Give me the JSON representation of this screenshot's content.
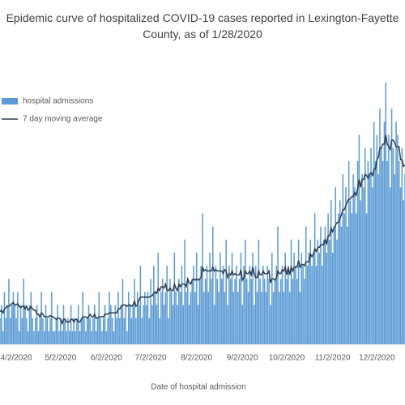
{
  "chart_data": {
    "type": "bar_line",
    "title": "Epidemic curve of hospitalized COVID-19 cases reported in Lexington-Fayette County, as of 1/28/2020",
    "x_label": "Date of hospital admission",
    "legend": "upper left",
    "ylim": [
      0,
      20
    ],
    "categories": [
      null,
      null,
      null,
      null,
      null,
      null,
      null,
      null,
      null,
      null,
      null,
      "4/2/2020",
      null,
      null,
      null,
      null,
      null,
      null,
      null,
      null,
      null,
      null,
      null,
      null,
      null,
      null,
      null,
      null,
      null,
      null,
      null,
      null,
      null,
      null,
      null,
      null,
      null,
      null,
      null,
      null,
      null,
      "5/2/2020",
      null,
      null,
      null,
      null,
      null,
      null,
      null,
      null,
      null,
      null,
      null,
      null,
      null,
      null,
      null,
      null,
      null,
      null,
      null,
      null,
      null,
      null,
      null,
      null,
      null,
      null,
      null,
      null,
      null,
      null,
      "6/2/2020",
      null,
      null,
      null,
      null,
      null,
      null,
      null,
      null,
      null,
      null,
      null,
      null,
      null,
      null,
      null,
      null,
      null,
      null,
      null,
      null,
      null,
      null,
      null,
      null,
      null,
      null,
      null,
      null,
      null,
      "7/2/2020",
      null,
      null,
      null,
      null,
      null,
      null,
      null,
      null,
      null,
      null,
      null,
      null,
      null,
      null,
      null,
      null,
      null,
      null,
      null,
      null,
      null,
      null,
      null,
      null,
      null,
      null,
      null,
      null,
      null,
      null,
      "8/2/2020",
      null,
      null,
      null,
      null,
      null,
      null,
      null,
      null,
      null,
      null,
      null,
      null,
      null,
      null,
      null,
      null,
      null,
      null,
      null,
      null,
      null,
      null,
      null,
      null,
      null,
      null,
      null,
      null,
      null,
      null,
      "9/2/2020",
      null,
      null,
      null,
      null,
      null,
      null,
      null,
      null,
      null,
      null,
      null,
      null,
      null,
      null,
      null,
      null,
      null,
      null,
      null,
      null,
      null,
      null,
      null,
      null,
      null,
      null,
      null,
      null,
      null,
      "10/2/2020",
      null,
      null,
      null,
      null,
      null,
      null,
      null,
      null,
      null,
      null,
      null,
      null,
      null,
      null,
      null,
      null,
      null,
      null,
      null,
      null,
      null,
      null,
      null,
      null,
      null,
      null,
      null,
      null,
      null,
      null,
      "11/2/2020",
      null,
      null,
      null,
      null,
      null,
      null,
      null,
      null,
      null,
      null,
      null,
      null,
      null,
      null,
      null,
      null,
      null,
      null,
      null,
      null,
      null,
      null,
      null,
      null,
      null,
      null,
      null,
      null,
      null,
      "12/2/2020",
      null,
      null,
      null,
      null,
      null,
      null,
      null,
      null,
      null,
      null,
      null,
      null,
      null,
      null,
      null,
      null,
      null,
      null,
      null
    ],
    "series": [
      {
        "name": "hospital admissions",
        "kind": "bar",
        "color": "#5b9bd5",
        "values": [
          2,
          3,
          1,
          4,
          2,
          3,
          5,
          2,
          3,
          4,
          3,
          2,
          4,
          1,
          3,
          2,
          5,
          3,
          2,
          1,
          3,
          4,
          2,
          1,
          2,
          3,
          1,
          2,
          4,
          2,
          1,
          3,
          2,
          1,
          2,
          4,
          1,
          1,
          2,
          3,
          1,
          2,
          1,
          3,
          2,
          1,
          2,
          1,
          3,
          1,
          2,
          1,
          2,
          3,
          1,
          2,
          4,
          2,
          1,
          2,
          3,
          2,
          1,
          2,
          3,
          1,
          2,
          4,
          2,
          1,
          2,
          3,
          1,
          2,
          4,
          3,
          2,
          1,
          3,
          2,
          4,
          2,
          3,
          5,
          2,
          3,
          1,
          4,
          3,
          2,
          3,
          5,
          2,
          4,
          3,
          6,
          2,
          3,
          4,
          3,
          4,
          2,
          5,
          3,
          6,
          4,
          3,
          7,
          2,
          4,
          5,
          3,
          4,
          6,
          2,
          5,
          4,
          3,
          7,
          4,
          3,
          5,
          4,
          6,
          3,
          8,
          4,
          5,
          3,
          4,
          5,
          6,
          4,
          7,
          3,
          5,
          6,
          10,
          4,
          5,
          6,
          4,
          7,
          5,
          9,
          3,
          6,
          5,
          4,
          7,
          5,
          6,
          4,
          8,
          3,
          6,
          5,
          7,
          4,
          5,
          6,
          4,
          5,
          7,
          3,
          6,
          8,
          5,
          4,
          6,
          5,
          7,
          3,
          6,
          4,
          8,
          5,
          4,
          6,
          5,
          4,
          6,
          5,
          3,
          7,
          4,
          5,
          6,
          9,
          4,
          5,
          6,
          4,
          7,
          5,
          6,
          4,
          8,
          5,
          7,
          6,
          5,
          8,
          4,
          7,
          6,
          5,
          9,
          6,
          7,
          8,
          6,
          7,
          10,
          6,
          8,
          7,
          9,
          6,
          8,
          9,
          7,
          10,
          8,
          11,
          7,
          9,
          12,
          8,
          10,
          11,
          9,
          13,
          10,
          12,
          9,
          14,
          11,
          10,
          13,
          12,
          10,
          14,
          16,
          11,
          13,
          12,
          15,
          10,
          14,
          13,
          15,
          12,
          17,
          14,
          16,
          13,
          18,
          15,
          14,
          17,
          20,
          14,
          16,
          12,
          18,
          15,
          13,
          17,
          16,
          14,
          12,
          15,
          11,
          13
        ]
      },
      {
        "name": "7 day moving average",
        "kind": "line",
        "color": "#2f3b4c",
        "values": [
          2.5,
          2.6,
          2.4,
          2.7,
          2.8,
          2.9,
          2.9,
          3.0,
          3.1,
          3.2,
          3.0,
          3.0,
          3.1,
          2.9,
          2.8,
          2.9,
          2.9,
          2.7,
          2.9,
          2.6,
          2.7,
          2.9,
          2.7,
          2.6,
          2.6,
          2.3,
          2.3,
          2.1,
          2.4,
          2.3,
          2.1,
          2.1,
          2.1,
          2.1,
          2.2,
          2.1,
          2.1,
          2.0,
          1.9,
          2.0,
          2.0,
          1.9,
          1.6,
          1.9,
          1.9,
          1.7,
          1.7,
          1.7,
          1.9,
          1.9,
          1.7,
          1.9,
          1.9,
          1.7,
          1.7,
          1.9,
          2.1,
          2.1,
          2.1,
          2.0,
          2.1,
          2.3,
          2.1,
          2.1,
          2.3,
          2.0,
          2.0,
          2.1,
          2.1,
          2.1,
          2.1,
          2.3,
          2.3,
          2.3,
          2.4,
          2.4,
          2.4,
          2.4,
          2.4,
          2.4,
          2.7,
          2.7,
          2.9,
          3.0,
          3.0,
          3.0,
          2.9,
          3.0,
          3.0,
          2.9,
          3.0,
          3.3,
          2.9,
          3.0,
          3.4,
          3.6,
          3.6,
          3.6,
          3.6,
          3.6,
          3.6,
          3.6,
          3.7,
          3.7,
          3.9,
          4.0,
          3.9,
          4.3,
          4.1,
          4.4,
          4.4,
          4.3,
          4.6,
          4.1,
          4.1,
          4.3,
          4.1,
          4.1,
          4.6,
          4.3,
          4.1,
          4.6,
          4.4,
          4.6,
          4.6,
          4.6,
          4.4,
          5.0,
          4.7,
          4.6,
          4.9,
          5.0,
          4.9,
          5.0,
          4.9,
          5.0,
          5.1,
          5.9,
          5.6,
          5.7,
          5.6,
          5.6,
          5.6,
          5.6,
          5.9,
          5.6,
          5.7,
          5.6,
          5.6,
          5.6,
          5.6,
          5.4,
          5.7,
          5.6,
          5.1,
          5.4,
          5.3,
          5.6,
          5.3,
          5.4,
          5.3,
          5.3,
          5.3,
          5.7,
          4.9,
          5.1,
          5.6,
          5.4,
          5.4,
          5.6,
          5.3,
          5.9,
          5.4,
          5.1,
          5.1,
          5.6,
          5.3,
          5.3,
          5.6,
          5.4,
          5.4,
          5.4,
          5.6,
          4.7,
          5.0,
          5.0,
          4.9,
          5.1,
          5.6,
          5.4,
          5.4,
          5.7,
          5.6,
          5.9,
          5.3,
          5.9,
          5.3,
          5.9,
          5.6,
          5.9,
          5.9,
          5.9,
          6.4,
          5.9,
          6.1,
          6.1,
          6.0,
          6.3,
          6.3,
          6.3,
          6.9,
          6.7,
          6.9,
          7.3,
          7.1,
          7.4,
          7.4,
          7.6,
          7.6,
          7.6,
          8.0,
          7.7,
          8.3,
          8.3,
          8.9,
          8.6,
          8.9,
          9.1,
          9.3,
          9.3,
          9.6,
          9.9,
          10.3,
          10.3,
          10.6,
          10.9,
          11.1,
          11.1,
          11.3,
          11.3,
          11.6,
          11.4,
          11.9,
          12.6,
          12.0,
          12.6,
          12.6,
          13.0,
          12.9,
          12.7,
          13.0,
          13.1,
          12.9,
          13.4,
          13.4,
          14.1,
          14.3,
          15.0,
          15.0,
          15.3,
          15.3,
          16.0,
          15.3,
          15.1,
          14.9,
          15.6,
          15.6,
          15.4,
          15.1,
          15.1,
          15.1,
          14.1,
          14.1,
          13.6,
          13.7
        ]
      }
    ]
  }
}
